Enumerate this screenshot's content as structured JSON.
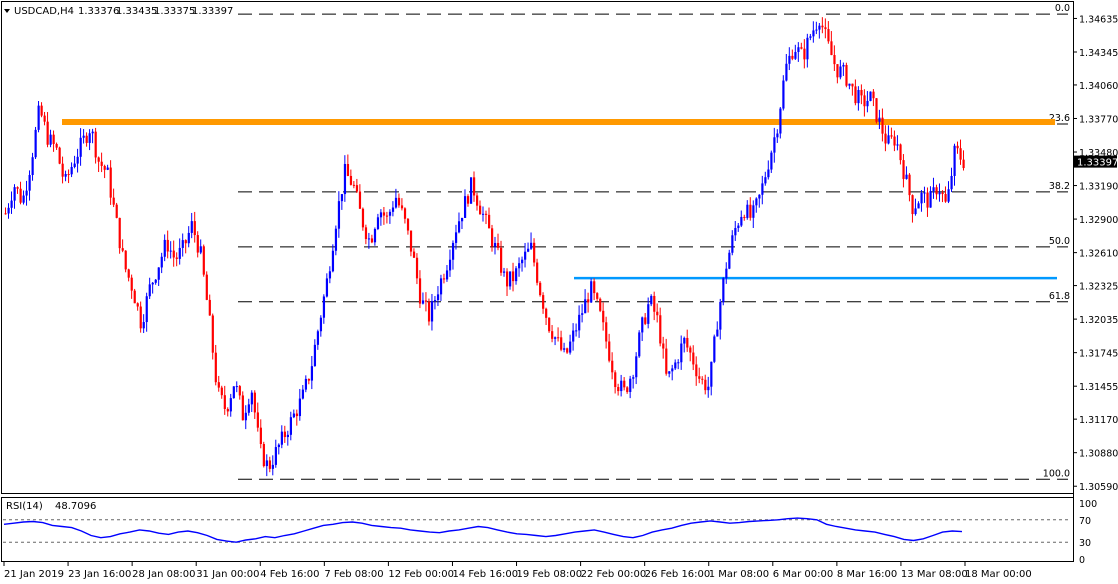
{
  "symbol_header": {
    "symbol": "USDCAD,H4",
    "ohlc": [
      "1.33376",
      "1.33435",
      "1.33375",
      "1.33397"
    ]
  },
  "current_price_label": "1.33397",
  "colors": {
    "bull": "#0000ff",
    "bear": "#ff0000",
    "orange_line": "#ff9900",
    "blue_line": "#0099ff",
    "rsi_line": "#0000ff",
    "fib_line": "#000000"
  },
  "chart_data": [
    {
      "type": "candlestick",
      "symbol": "USDCAD",
      "timeframe": "H4",
      "y_ticks": [
        "1.34635",
        "1.34345",
        "1.34060",
        "1.33770",
        "1.33480",
        "1.33190",
        "1.32900",
        "1.32610",
        "1.32325",
        "1.32035",
        "1.31745",
        "1.31455",
        "1.31170",
        "1.30880",
        "1.30590"
      ],
      "ylim": [
        1.3054,
        1.3476
      ],
      "x_ticks": [
        "21 Jan 2019",
        "23 Jan 16:00",
        "28 Jan 08:00",
        "31 Jan 00:00",
        "4 Feb 16:00",
        "7 Feb 08:00",
        "12 Feb 00:00",
        "14 Feb 16:00",
        "19 Feb 08:00",
        "22 Feb 00:00",
        "26 Feb 16:00",
        "1 Mar 08:00",
        "6 Mar 00:00",
        "8 Mar 16:00",
        "13 Mar 08:00",
        "18 Mar 00:00"
      ],
      "fibonacci_levels": [
        {
          "label": "0.0",
          "price": 1.34672
        },
        {
          "label": "23.6",
          "price": 1.33722
        },
        {
          "label": "38.2",
          "price": 1.33135
        },
        {
          "label": "50.0",
          "price": 1.3266
        },
        {
          "label": "61.8",
          "price": 1.32185
        },
        {
          "label": "100.0",
          "price": 1.3065
        }
      ],
      "horizontal_lines": [
        {
          "name": "resistance",
          "price": 1.3374,
          "color": "#ff9900"
        },
        {
          "name": "support",
          "price": 1.3239,
          "color": "#0099ff"
        }
      ],
      "price_path": [
        1.3295,
        1.332,
        1.3305,
        1.334,
        1.3385,
        1.336,
        1.335,
        1.332,
        1.334,
        1.3355,
        1.337,
        1.334,
        1.333,
        1.329,
        1.325,
        1.323,
        1.32,
        1.323,
        1.325,
        1.327,
        1.3255,
        1.3265,
        1.3285,
        1.326,
        1.3205,
        1.314,
        1.3125,
        1.315,
        1.312,
        1.3145,
        1.309,
        1.3075,
        1.309,
        1.3105,
        1.312,
        1.3135,
        1.316,
        1.32,
        1.324,
        1.329,
        1.333,
        1.332,
        1.329,
        1.327,
        1.33,
        1.329,
        1.331,
        1.329,
        1.326,
        1.322,
        1.3205,
        1.323,
        1.325,
        1.328,
        1.33,
        1.332,
        1.33,
        1.328,
        1.326,
        1.3235,
        1.324,
        1.3255,
        1.3265,
        1.323,
        1.32,
        1.3185,
        1.317,
        1.319,
        1.321,
        1.323,
        1.321,
        1.318,
        1.315,
        1.314,
        1.316,
        1.3195,
        1.322,
        1.32,
        1.315,
        1.3165,
        1.3185,
        1.317,
        1.315,
        1.3145,
        1.3205,
        1.325,
        1.328,
        1.33,
        1.329,
        1.331,
        1.334,
        1.337,
        1.342,
        1.344,
        1.343,
        1.345,
        1.3465,
        1.344,
        1.342,
        1.3415,
        1.34,
        1.339,
        1.3395,
        1.3375,
        1.3355,
        1.336,
        1.333,
        1.33,
        1.331,
        1.3305,
        1.332,
        1.33,
        1.335,
        1.334
      ],
      "rsi": {
        "label": "RSI(14)",
        "value": "48.7096",
        "levels": [
          70,
          30
        ],
        "scale_labels": [
          "100",
          "70",
          "30",
          "0"
        ],
        "values": [
          62,
          64,
          66,
          67,
          65,
          60,
          58,
          56,
          50,
          42,
          38,
          40,
          45,
          48,
          52,
          50,
          46,
          44,
          48,
          50,
          47,
          42,
          35,
          32,
          30,
          34,
          36,
          40,
          38,
          42,
          45,
          50,
          55,
          60,
          62,
          65,
          66,
          64,
          60,
          58,
          56,
          55,
          52,
          50,
          48,
          47,
          50,
          52,
          55,
          58,
          56,
          52,
          48,
          45,
          44,
          42,
          40,
          42,
          45,
          48,
          50,
          52,
          48,
          44,
          40,
          38,
          42,
          48,
          52,
          55,
          60,
          64,
          66,
          68,
          66,
          64,
          65,
          67,
          68,
          69,
          70,
          72,
          73,
          72,
          70,
          62,
          58,
          55,
          52,
          50,
          48,
          44,
          40,
          35,
          33,
          36,
          42,
          48,
          50,
          49
        ]
      }
    }
  ]
}
